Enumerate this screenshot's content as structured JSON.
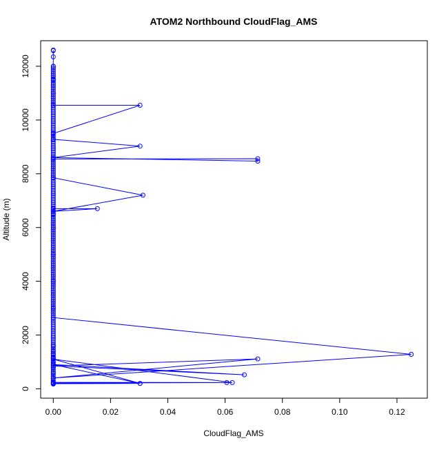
{
  "chart_data": {
    "type": "line",
    "title": "ATOM2 Northbound CloudFlag_AMS",
    "xlabel": "CloudFlag_AMS",
    "ylabel": "Altitude (m)",
    "xlim": [
      -0.0044,
      0.1306
    ],
    "ylim": [
      -350,
      12950
    ],
    "x_ticks": [
      0.0,
      0.02,
      0.04,
      0.06,
      0.08,
      0.1,
      0.12
    ],
    "x_tick_labels": [
      "0.00",
      "0.02",
      "0.04",
      "0.06",
      "0.08",
      "0.10",
      "0.12"
    ],
    "y_ticks": [
      0,
      2000,
      4000,
      6000,
      8000,
      10000,
      12000
    ],
    "y_tick_labels": [
      "0",
      "2000",
      "4000",
      "6000",
      "8000",
      "10000",
      "12000"
    ],
    "series": [
      {
        "color": "#0000ff",
        "marker": "open-circle",
        "x": [
          0,
          0,
          0,
          0,
          0,
          0,
          0,
          0,
          0,
          0,
          0,
          0,
          0.0303,
          0,
          0.0606,
          0,
          0.0625,
          0,
          0.0303,
          0,
          0.0667,
          0,
          0.0714,
          0,
          0.125,
          0,
          0,
          0,
          0,
          0,
          0,
          0,
          0.0154,
          0,
          0.0313,
          0,
          0,
          0.0714,
          0.0714,
          0,
          0.0303,
          0,
          0,
          0.0303,
          0,
          0,
          0,
          0,
          0,
          0,
          0
        ],
        "y": [
          180,
          400,
          600,
          800,
          1000,
          1150,
          1300,
          1400,
          1600,
          180,
          180,
          190,
          200,
          210,
          230,
          240,
          230,
          1100,
          200,
          900,
          520,
          850,
          1110,
          400,
          1280,
          2650,
          3000,
          4000,
          5000,
          6000,
          6500,
          6700,
          6700,
          6600,
          7200,
          7850,
          8550,
          8560,
          8470,
          8600,
          9030,
          9280,
          9500,
          10550,
          10550,
          11000,
          11500,
          12000,
          12350,
          12580,
          12600
        ]
      }
    ]
  }
}
